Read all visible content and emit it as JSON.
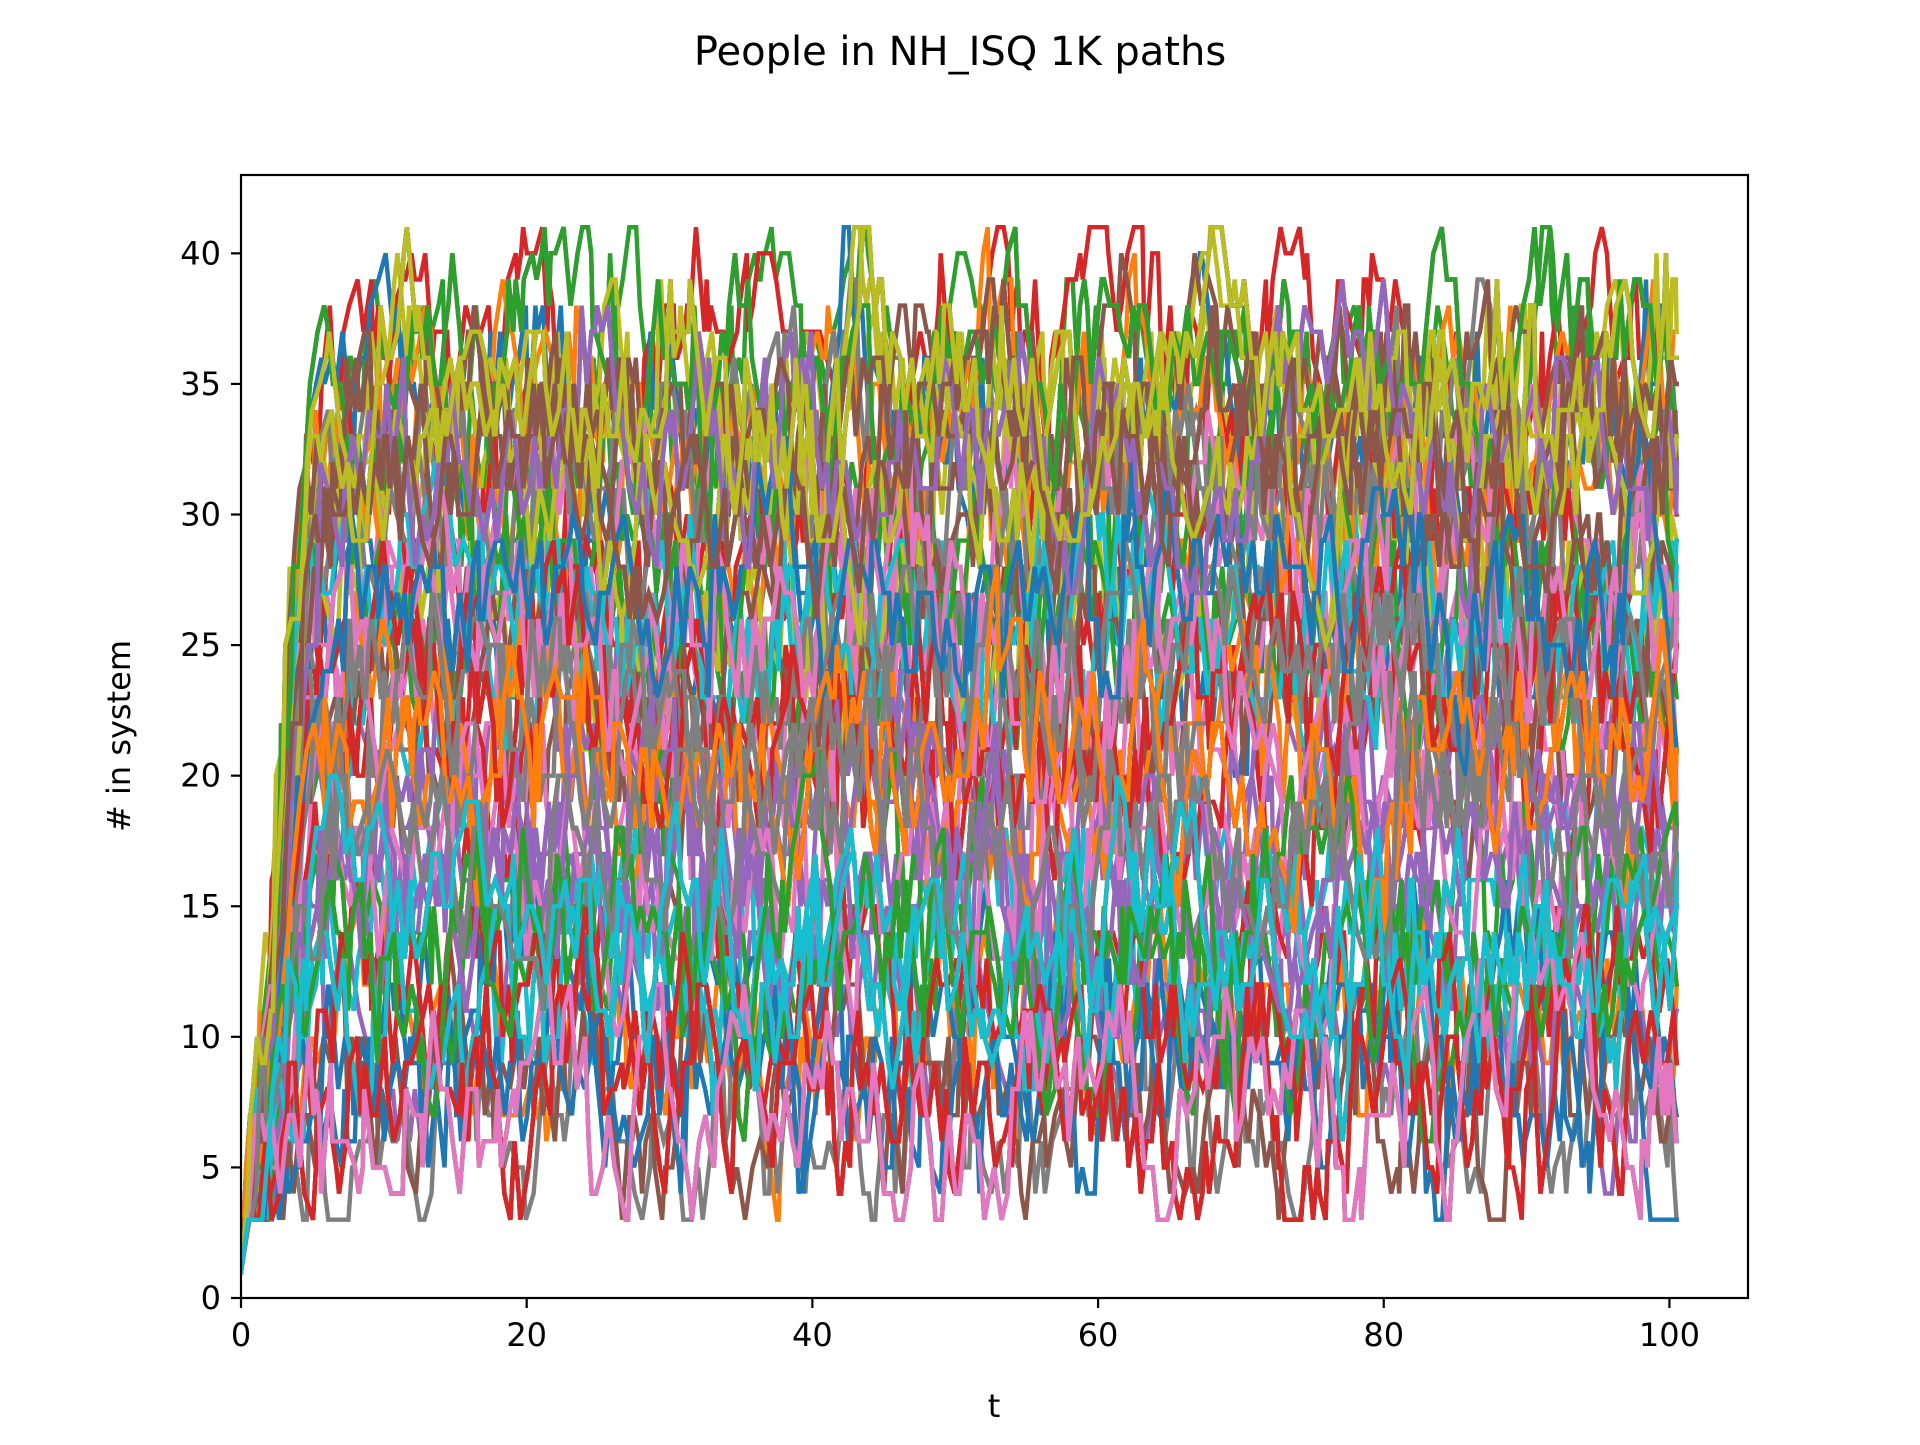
{
  "chart_data": {
    "type": "line",
    "title": "People in NH_ISQ 1K paths",
    "xlabel": "t",
    "ylabel": "# in system",
    "xlim": [
      0,
      105.5
    ],
    "ylim": [
      0,
      43
    ],
    "x_ticks": [
      0,
      20,
      40,
      60,
      80,
      100
    ],
    "y_ticks": [
      0,
      5,
      10,
      15,
      20,
      25,
      30,
      35,
      40
    ],
    "x_tick_labels": [
      "0",
      "20",
      "40",
      "60",
      "80",
      "100"
    ],
    "y_tick_labels": [
      "0",
      "5",
      "10",
      "15",
      "20",
      "25",
      "30",
      "35",
      "40"
    ],
    "grid": false,
    "legend": "none",
    "x_start": 0,
    "x_end": 100.5,
    "num_paths": 1000,
    "path_value_range": [
      3,
      41
    ],
    "steady_state_band": [
      7,
      36
    ],
    "palette": [
      "#1f77b4",
      "#ff7f0e",
      "#2ca02c",
      "#d62728",
      "#9467bd",
      "#8c564b",
      "#e377c2",
      "#7f7f7f",
      "#bcbd22",
      "#17becf"
    ]
  }
}
